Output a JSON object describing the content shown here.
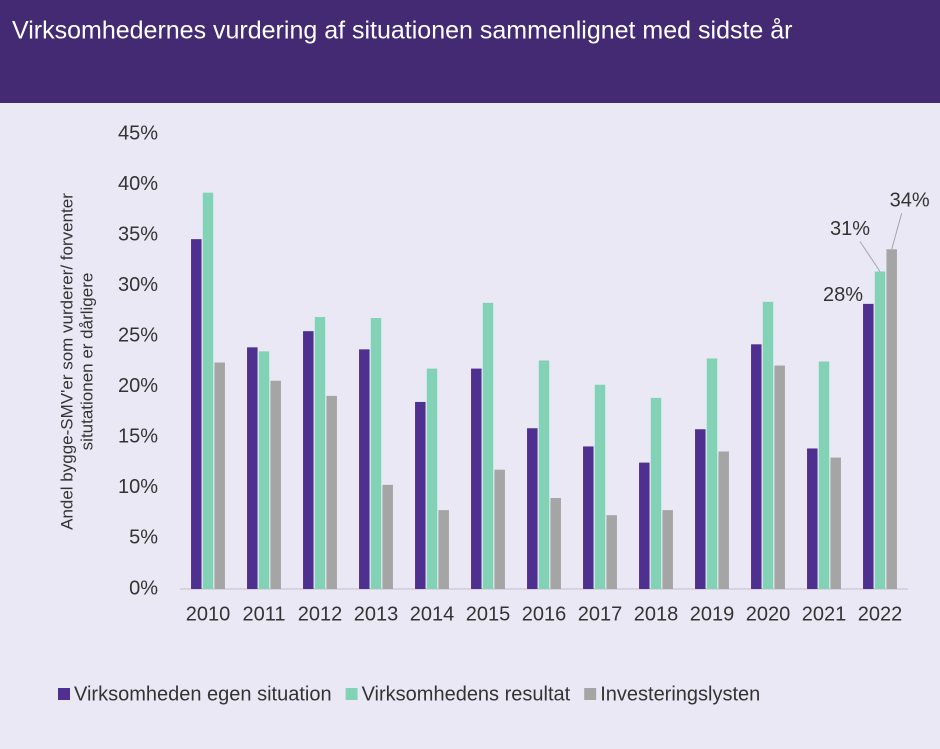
{
  "chart_data": {
    "type": "bar",
    "title": "Virksomhedernes vurdering af situationen sammenlignet med sidste år",
    "ylabel": [
      "Andel bygge-SMV'er som vurderer/ forventer",
      "situtationen er dårligere"
    ],
    "categories": [
      "2010",
      "2011",
      "2012",
      "2013",
      "2014",
      "2015",
      "2016",
      "2017",
      "2018",
      "2019",
      "2020",
      "2021",
      "2022"
    ],
    "series": [
      {
        "name": "Virksomheden egen situation",
        "color": "#4f2f8f",
        "values": [
          34.6,
          23.9,
          25.5,
          23.7,
          18.5,
          21.8,
          15.9,
          14.1,
          12.5,
          15.8,
          24.2,
          13.9,
          28.2
        ],
        "value_labels": [
          null,
          null,
          null,
          null,
          null,
          null,
          null,
          null,
          null,
          null,
          null,
          null,
          "28%"
        ]
      },
      {
        "name": "Virksomhedens resultat",
        "color": "#82d3b5",
        "values": [
          39.2,
          23.5,
          26.9,
          26.8,
          21.8,
          28.3,
          22.6,
          20.2,
          18.9,
          22.8,
          28.4,
          22.5,
          31.4
        ],
        "value_labels": [
          null,
          null,
          null,
          null,
          null,
          null,
          null,
          null,
          null,
          null,
          null,
          null,
          "31%"
        ]
      },
      {
        "name": "Investeringslysten",
        "color": "#a5a5a5",
        "values": [
          22.4,
          20.6,
          19.1,
          10.3,
          7.8,
          11.8,
          9.0,
          7.3,
          7.8,
          13.6,
          22.1,
          13.0,
          33.6
        ],
        "value_labels": [
          null,
          null,
          null,
          null,
          null,
          null,
          null,
          null,
          null,
          null,
          null,
          null,
          "34%"
        ]
      }
    ],
    "ylim": [
      0,
      45
    ],
    "yticks": [
      {
        "value": 0,
        "label": "0%"
      },
      {
        "value": 5,
        "label": "5%"
      },
      {
        "value": 10,
        "label": "10%"
      },
      {
        "value": 15,
        "label": "15%"
      },
      {
        "value": 20,
        "label": "20%"
      },
      {
        "value": 25,
        "label": "25%"
      },
      {
        "value": 30,
        "label": "30%"
      },
      {
        "value": 35,
        "label": "35%"
      },
      {
        "value": 40,
        "label": "40%"
      },
      {
        "value": 45,
        "label": "45%"
      }
    ],
    "grid": false,
    "legend": "bottom"
  }
}
